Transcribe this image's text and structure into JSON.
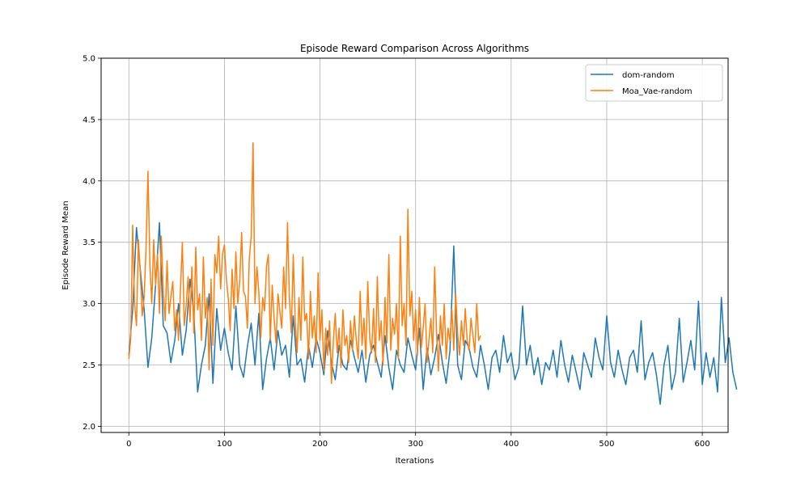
{
  "chart_data": {
    "type": "line",
    "title": "Episode Reward Comparison Across Algorithms",
    "xlabel": "Iterations",
    "ylabel": "Episode Reward Mean",
    "xlim": [
      -29,
      627
    ],
    "ylim": [
      1.95,
      5.0
    ],
    "xticks": [
      0,
      100,
      200,
      300,
      400,
      500,
      600
    ],
    "yticks": [
      2.0,
      2.5,
      3.0,
      3.5,
      4.0,
      4.5,
      5.0
    ],
    "xtick_labels": [
      "0",
      "100",
      "200",
      "300",
      "400",
      "500",
      "600"
    ],
    "ytick_labels": [
      "2.0",
      "2.5",
      "3.0",
      "3.5",
      "4.0",
      "4.5",
      "5.0"
    ],
    "grid": true,
    "legend_position": "top-right",
    "series": [
      {
        "name": "dom-random",
        "color": "#1f77b4",
        "x_start": 0,
        "x_step": 4,
        "values": [
          2.58,
          2.95,
          3.62,
          3.28,
          2.95,
          2.48,
          2.72,
          3.15,
          3.66,
          2.82,
          2.76,
          2.52,
          2.7,
          3.0,
          2.58,
          2.78,
          3.2,
          2.92,
          2.28,
          2.5,
          2.66,
          3.08,
          2.35,
          2.96,
          2.62,
          2.8,
          2.6,
          2.46,
          2.98,
          2.5,
          2.4,
          2.65,
          2.84,
          2.5,
          2.92,
          2.3,
          2.55,
          2.72,
          2.46,
          2.78,
          2.58,
          2.66,
          2.4,
          2.9,
          2.5,
          2.55,
          2.36,
          2.66,
          2.48,
          2.72,
          2.6,
          2.42,
          2.78,
          2.52,
          2.38,
          2.66,
          2.5,
          2.46,
          2.7,
          2.56,
          2.44,
          2.62,
          2.36,
          2.58,
          2.66,
          2.52,
          2.4,
          2.74,
          2.48,
          2.3,
          2.62,
          2.5,
          2.44,
          2.72,
          2.58,
          2.46,
          2.8,
          2.3,
          2.64,
          2.42,
          2.56,
          2.75,
          2.52,
          2.35,
          2.62,
          3.47,
          2.5,
          2.38,
          2.7,
          2.64,
          2.48,
          2.4,
          2.66,
          2.5,
          2.3,
          2.56,
          2.62,
          2.44,
          2.74,
          2.52,
          2.6,
          2.38,
          2.48,
          2.98,
          2.5,
          2.66,
          2.42,
          2.56,
          2.34,
          2.52,
          2.46,
          2.62,
          2.4,
          2.7,
          2.5,
          2.36,
          2.58,
          2.44,
          2.3,
          2.6,
          2.5,
          2.4,
          2.72,
          2.56,
          2.46,
          2.9,
          2.52,
          2.4,
          2.62,
          2.46,
          2.34,
          2.56,
          2.62,
          2.44,
          2.86,
          2.38,
          2.52,
          2.6,
          2.42,
          2.18,
          2.5,
          2.66,
          2.3,
          2.44,
          2.88,
          2.36,
          2.52,
          2.7,
          2.46,
          3.02,
          2.34,
          2.6,
          2.4,
          2.56,
          2.28,
          3.05,
          2.52,
          2.72,
          2.44,
          2.3
        ]
      },
      {
        "name": "Moa_Vae-random",
        "color": "#ff7f0e",
        "x_start": 0,
        "x_step": 2,
        "values": [
          2.55,
          2.72,
          3.64,
          3.0,
          2.82,
          3.52,
          3.25,
          2.9,
          3.05,
          3.45,
          4.08,
          3.32,
          3.0,
          3.52,
          3.15,
          3.4,
          2.92,
          3.55,
          3.1,
          2.86,
          3.35,
          2.92,
          3.05,
          3.18,
          2.78,
          2.95,
          2.7,
          3.12,
          3.5,
          2.82,
          2.98,
          3.22,
          2.85,
          3.3,
          2.76,
          3.46,
          2.95,
          3.08,
          2.7,
          3.38,
          2.88,
          3.05,
          2.46,
          3.2,
          2.66,
          3.4,
          3.25,
          3.55,
          3.12,
          3.4,
          3.48,
          3.2,
          3.05,
          2.78,
          3.28,
          2.96,
          3.42,
          3.0,
          3.18,
          3.58,
          3.1,
          3.06,
          2.8,
          3.36,
          3.55,
          4.31,
          3.0,
          3.3,
          3.1,
          2.72,
          3.05,
          2.94,
          3.3,
          3.4,
          2.7,
          3.15,
          2.88,
          2.68,
          3.08,
          2.94,
          2.8,
          3.3,
          2.96,
          3.66,
          3.05,
          2.76,
          3.4,
          2.88,
          2.6,
          3.05,
          2.7,
          3.38,
          2.86,
          2.92,
          2.55,
          3.1,
          2.72,
          2.9,
          2.6,
          3.25,
          2.7,
          2.95,
          2.45,
          2.8,
          2.58,
          2.86,
          2.35,
          2.7,
          2.92,
          2.6,
          2.8,
          2.48,
          2.95,
          2.66,
          2.74,
          2.52,
          2.86,
          2.62,
          2.9,
          2.7,
          2.55,
          3.1,
          2.66,
          2.88,
          2.55,
          3.18,
          2.72,
          2.6,
          2.96,
          2.52,
          3.22,
          2.7,
          2.86,
          2.5,
          3.05,
          2.68,
          3.4,
          2.62,
          2.88,
          2.75,
          3.0,
          2.55,
          3.55,
          2.82,
          3.0,
          2.66,
          3.77,
          2.9,
          3.1,
          2.7,
          2.95,
          2.58,
          3.05,
          2.64,
          2.8,
          3.0,
          2.52,
          2.7,
          2.88,
          2.6,
          3.3,
          2.75,
          2.45,
          2.9,
          2.66,
          3.0,
          2.55,
          2.8,
          2.7,
          2.95,
          2.62,
          3.08,
          2.75,
          2.58,
          2.86,
          2.66,
          2.96,
          2.7,
          2.62,
          2.88,
          2.74,
          2.6,
          3.0,
          2.7,
          2.74
        ]
      }
    ]
  }
}
